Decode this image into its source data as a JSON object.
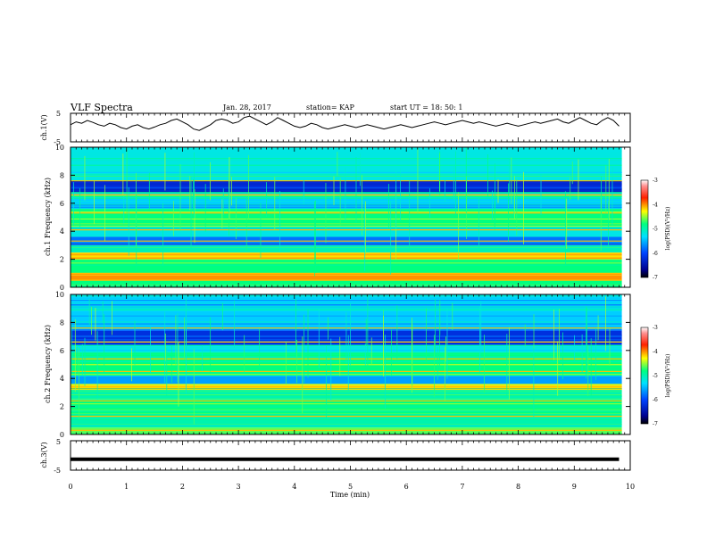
{
  "header": {
    "title": "VLF Spectra",
    "date": "Jan. 28, 2017",
    "station": "station= KAP",
    "start_time": "start  UT =   18: 50: 1"
  },
  "chart_data": [
    {
      "type": "line",
      "ylabel": "ch.1(V)",
      "ylim": [
        -5,
        5
      ],
      "yticks": [
        "5",
        "-5"
      ],
      "series": [
        {
          "x": [
            0,
            0.1,
            0.2,
            0.3,
            0.4,
            0.5,
            0.6,
            0.7,
            0.8,
            0.9,
            1.0,
            1.1,
            1.2,
            1.3,
            1.4,
            1.5,
            1.6,
            1.7,
            1.8,
            1.9,
            2.0,
            2.1,
            2.2,
            2.3,
            2.4,
            2.5,
            2.6,
            2.7,
            2.8,
            2.9,
            3.0,
            3.1,
            3.2,
            3.3,
            3.4,
            3.5,
            3.6,
            3.7,
            3.8,
            3.9,
            4.0,
            4.1,
            4.2,
            4.3,
            4.4,
            4.5,
            4.6,
            4.7,
            4.8,
            4.9,
            5.0,
            5.1,
            5.2,
            5.3,
            5.4,
            5.5,
            5.6,
            5.7,
            5.8,
            5.9,
            6.0,
            6.1,
            6.2,
            6.3,
            6.4,
            6.5,
            6.6,
            6.7,
            6.8,
            6.9,
            7.0,
            7.1,
            7.2,
            7.3,
            7.4,
            7.5,
            7.6,
            7.7,
            7.8,
            7.9,
            8.0,
            8.1,
            8.2,
            8.3,
            8.4,
            8.5,
            8.6,
            8.7,
            8.8,
            8.9,
            9.0,
            9.1,
            9.2,
            9.3,
            9.4,
            9.5,
            9.6,
            9.7,
            9.8
          ],
          "values": [
            1.0,
            2.0,
            1.5,
            2.5,
            1.8,
            1.0,
            0.5,
            1.5,
            1.0,
            0.0,
            -0.5,
            0.5,
            1.0,
            0.0,
            -0.5,
            0.2,
            1.0,
            1.5,
            2.5,
            3.0,
            2.0,
            1.0,
            -0.5,
            -1.0,
            0.0,
            1.0,
            2.5,
            3.0,
            2.5,
            1.5,
            2.0,
            3.5,
            4.0,
            3.0,
            2.0,
            1.0,
            2.0,
            3.5,
            2.5,
            1.5,
            0.5,
            0.0,
            0.5,
            1.5,
            1.0,
            0.0,
            -0.5,
            0.0,
            0.5,
            1.0,
            0.5,
            0.0,
            0.5,
            1.0,
            0.5,
            0.0,
            -0.5,
            0.0,
            0.5,
            1.0,
            0.5,
            0.0,
            0.5,
            1.0,
            1.5,
            2.0,
            1.5,
            1.0,
            1.5,
            2.0,
            2.5,
            2.0,
            1.5,
            2.0,
            1.5,
            1.0,
            0.5,
            1.0,
            1.5,
            1.0,
            0.5,
            1.0,
            1.5,
            2.0,
            1.5,
            2.0,
            2.5,
            3.0,
            2.0,
            1.5,
            2.5,
            3.5,
            2.5,
            1.5,
            1.0,
            2.5,
            3.5,
            2.5,
            0.5
          ]
        }
      ]
    },
    {
      "type": "heatmap",
      "ylabel": "ch.1 Frequency (kHz)",
      "ylim": [
        0,
        10
      ],
      "yticks": [
        "0",
        "2",
        "4",
        "6",
        "8",
        "10"
      ],
      "colorbar": {
        "label": "log(PSD)(V²/Hz)",
        "range": [
          -7,
          -3
        ],
        "ticks": [
          "-3",
          "-4",
          "-5",
          "-6",
          "-7"
        ]
      },
      "bands": [
        {
          "from": 0,
          "to": 0.5,
          "level": 0.55
        },
        {
          "from": 0.5,
          "to": 1.0,
          "level": 0.75
        },
        {
          "from": 1.0,
          "to": 2.0,
          "level": 0.55
        },
        {
          "from": 2.0,
          "to": 2.5,
          "level": 0.7
        },
        {
          "from": 2.5,
          "to": 3.0,
          "level": 0.5
        },
        {
          "from": 3.0,
          "to": 3.6,
          "level": 0.3
        },
        {
          "from": 3.6,
          "to": 4.2,
          "level": 0.45
        },
        {
          "from": 4.2,
          "to": 5.6,
          "level": 0.55
        },
        {
          "from": 5.6,
          "to": 6.4,
          "level": 0.4
        },
        {
          "from": 6.4,
          "to": 6.8,
          "level": 0.5
        },
        {
          "from": 6.8,
          "to": 7.6,
          "level": 0.2
        },
        {
          "from": 7.6,
          "to": 10,
          "level": 0.45
        }
      ],
      "lines_khz": [
        0.5,
        1.0,
        2.3,
        3.3,
        4.1,
        5.3,
        6.6,
        7.6
      ]
    },
    {
      "type": "heatmap",
      "ylabel": "ch.2 Frequency (kHz)",
      "ylim": [
        0,
        10
      ],
      "yticks": [
        "0",
        "2",
        "4",
        "6",
        "8",
        "10"
      ],
      "colorbar": {
        "label": "log(PSD)(V²/Hz)",
        "range": [
          -7,
          -3
        ],
        "ticks": [
          "-3",
          "-4",
          "-5",
          "-6",
          "-7"
        ]
      },
      "bands": [
        {
          "from": 0,
          "to": 0.5,
          "level": 0.6
        },
        {
          "from": 0.5,
          "to": 1.5,
          "level": 0.5
        },
        {
          "from": 1.5,
          "to": 2.5,
          "level": 0.55
        },
        {
          "from": 2.5,
          "to": 3.2,
          "level": 0.5
        },
        {
          "from": 3.2,
          "to": 3.6,
          "level": 0.7
        },
        {
          "from": 3.6,
          "to": 4.2,
          "level": 0.35
        },
        {
          "from": 4.2,
          "to": 5.8,
          "level": 0.55
        },
        {
          "from": 5.8,
          "to": 6.4,
          "level": 0.45
        },
        {
          "from": 6.4,
          "to": 7.4,
          "level": 0.2
        },
        {
          "from": 7.4,
          "to": 10,
          "level": 0.4
        }
      ],
      "lines_khz": [
        0.3,
        1.3,
        2.4,
        3.4,
        4.5,
        5.4,
        6.6,
        7.6
      ]
    },
    {
      "type": "line",
      "ylabel": "ch.3(V)",
      "ylim": [
        -5,
        5
      ],
      "yticks": [
        "5",
        "-5"
      ],
      "series": [
        {
          "x": [
            0,
            9.8
          ],
          "values": [
            -1.3,
            -1.3
          ]
        }
      ]
    }
  ],
  "xaxis": {
    "label": "Time (min)",
    "range": [
      0,
      10
    ],
    "ticks": [
      "0",
      "1",
      "2",
      "3",
      "4",
      "5",
      "6",
      "7",
      "8",
      "9",
      "10"
    ]
  }
}
